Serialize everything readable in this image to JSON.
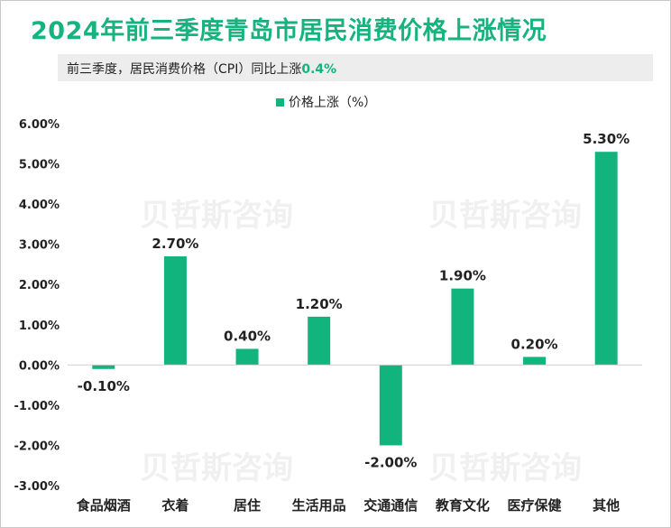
{
  "header": {
    "title": "2024年前三季度青岛市居民消费价格上涨情况",
    "subtitle_prefix": "前三季度，居民消费价格（CPI）同比上涨",
    "subtitle_value": "0.4%"
  },
  "colors": {
    "accent": "#15b37e",
    "bar": "#12b47e",
    "subtitle_bg": "#ededed",
    "axis": "#d0d0d0"
  },
  "watermark": {
    "text": "贝哲斯咨询"
  },
  "chart_data": {
    "type": "bar",
    "title": "2024年前三季度青岛市居民消费价格上涨情况",
    "xlabel": "",
    "ylabel": "",
    "legend": {
      "label": "价格上涨（%）",
      "position": "top-center"
    },
    "ylim": [
      -3.0,
      6.0
    ],
    "yticks": [
      6.0,
      5.0,
      4.0,
      3.0,
      2.0,
      1.0,
      0.0,
      -1.0,
      -2.0,
      -3.0
    ],
    "ytick_labels": [
      "6.00%",
      "5.00%",
      "4.00%",
      "3.00%",
      "2.00%",
      "1.00%",
      "0.00%",
      "-1.00%",
      "-2.00%",
      "-3.00%"
    ],
    "grid": false,
    "categories": [
      "食品烟酒",
      "衣着",
      "居住",
      "生活用品",
      "交通通信",
      "教育文化",
      "医疗保健",
      "其他"
    ],
    "series": [
      {
        "name": "价格上涨（%）",
        "values": [
          -0.1,
          2.7,
          0.4,
          1.2,
          -2.0,
          1.9,
          0.2,
          5.3
        ],
        "labels": [
          "-0.10%",
          "2.70%",
          "0.40%",
          "1.20%",
          "-2.00%",
          "1.90%",
          "0.20%",
          "5.30%"
        ]
      }
    ]
  }
}
